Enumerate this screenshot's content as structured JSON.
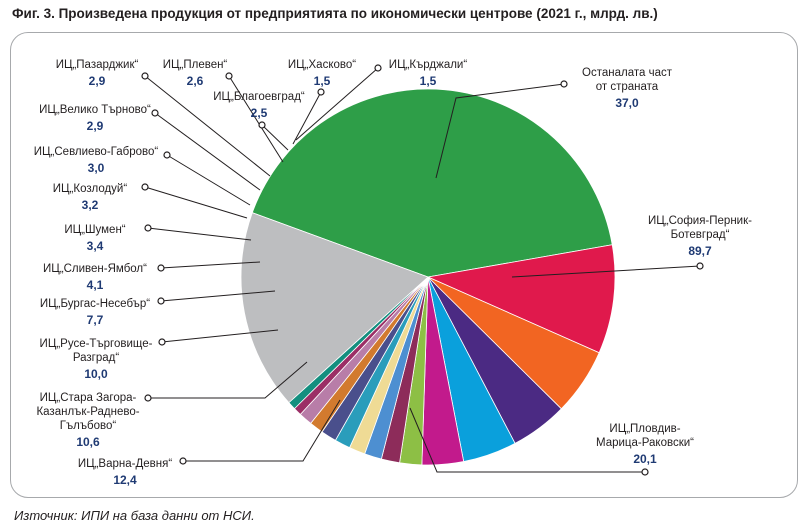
{
  "figure": {
    "title": "Фиг. 3. Произведена продукция от предприятията по икономически центрове (2021 г., млрд. лв.)",
    "source": "Източник: ИПИ на база данни от НСИ."
  },
  "chart_data": {
    "type": "pie",
    "title": "Фиг. 3. Произведена продукция от предприятията по икономически центрове (2021 г., млрд. лв.)",
    "unit": "млрд. лв.",
    "slices": [
      {
        "label": [
          "ИЦ„София-Перник-",
          "Ботевград“"
        ],
        "value": 89.7,
        "display": "89,7",
        "color": "#2e9e48"
      },
      {
        "label": [
          "ИЦ„Пловдив-",
          "Марица-Раковски“"
        ],
        "value": 20.1,
        "display": "20,1",
        "color": "#e0194c"
      },
      {
        "label": [
          "ИЦ„Варна-Девня“"
        ],
        "value": 12.4,
        "display": "12,4",
        "color": "#f26522"
      },
      {
        "label": [
          "ИЦ„Стара Загора-",
          "Казанлък-Раднево-",
          "Гълъбово“"
        ],
        "value": 10.6,
        "display": "10,6",
        "color": "#4b2a83"
      },
      {
        "label": [
          "ИЦ„Русе-Търговище-",
          "Разград“"
        ],
        "value": 10.0,
        "display": "10,0",
        "color": "#0aa0dc"
      },
      {
        "label": [
          "ИЦ„Бургас-Несебър“"
        ],
        "value": 7.7,
        "display": "7,7",
        "color": "#c21a8c"
      },
      {
        "label": [
          "ИЦ„Сливен-Ямбол“"
        ],
        "value": 4.1,
        "display": "4,1",
        "color": "#8dbf45"
      },
      {
        "label": [
          "ИЦ„Шумен“"
        ],
        "value": 3.4,
        "display": "3,4",
        "color": "#8d2c5a"
      },
      {
        "label": [
          "ИЦ„Козлодуй“"
        ],
        "value": 3.2,
        "display": "3,2",
        "color": "#4d8fd1"
      },
      {
        "label": [
          "ИЦ„Севлиево-Габрово“"
        ],
        "value": 3.0,
        "display": "3,0",
        "color": "#efdb95"
      },
      {
        "label": [
          "ИЦ„Велико Търново“"
        ],
        "value": 2.9,
        "display": "2,9",
        "color": "#2a9dbb"
      },
      {
        "label": [
          "ИЦ„Пазарджик“"
        ],
        "value": 2.9,
        "display": "2,9",
        "color": "#4a4f8c"
      },
      {
        "label": [
          "ИЦ„Плевен“"
        ],
        "value": 2.6,
        "display": "2,6",
        "color": "#d27a2e"
      },
      {
        "label": [
          "ИЦ„Благоевград“"
        ],
        "value": 2.5,
        "display": "2,5",
        "color": "#b87da8"
      },
      {
        "label": [
          "ИЦ„Хасково“"
        ],
        "value": 1.5,
        "display": "1,5",
        "color": "#9b2e66"
      },
      {
        "label": [
          "ИЦ„Кърджали“"
        ],
        "value": 1.5,
        "display": "1,5",
        "color": "#148f7f"
      },
      {
        "label": [
          "Останалата част",
          "от страната"
        ],
        "value": 37.0,
        "display": "37,0",
        "color": "#bdbec0"
      }
    ]
  }
}
